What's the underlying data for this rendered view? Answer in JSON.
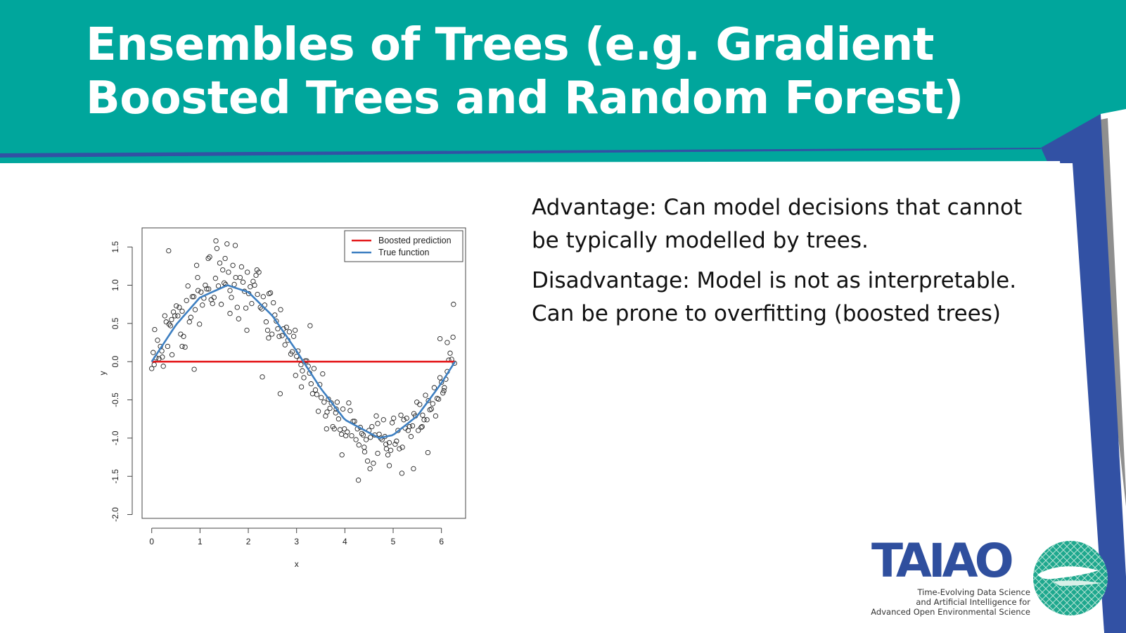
{
  "slide": {
    "title": "Ensembles of Trees (e.g. Gradient Boosted Trees and Random Forest)",
    "advantage": "Advantage: Can model decisions that cannot be typically modelled by trees.",
    "disadvantage": "Disadvantage: Model is not as interpretable. Can be prone to overfitting (boosted trees)",
    "colors": {
      "teal": "#00a69c",
      "blue": "#3251a4",
      "gray": "#8f8f8f"
    }
  },
  "logo": {
    "word": "TAIAO",
    "tagline": [
      "Time-Evolving Data Science",
      "and Artificial Intelligence for",
      "Advanced Open Environmental Science"
    ]
  },
  "chart_data": {
    "type": "scatter",
    "xlabel": "x",
    "ylabel": "y",
    "xlim": [
      -0.2,
      6.5
    ],
    "ylim": [
      -2.05,
      1.75
    ],
    "xticks": [
      "0",
      "1",
      "2",
      "3",
      "4",
      "5",
      "6"
    ],
    "yticks": [
      "-2.0",
      "-1.5",
      "-1.0",
      "-0.5",
      "0.0",
      "0.5",
      "1.0",
      "1.5"
    ],
    "legend_position": "top-right",
    "series": [
      {
        "name": "Boosted prediction",
        "type": "line",
        "color": "#e41a1c",
        "x": [
          0,
          6.28
        ],
        "y": [
          0,
          0
        ]
      },
      {
        "name": "True function",
        "type": "line",
        "color": "#3d7fc1",
        "x": [
          0,
          0.5,
          1.0,
          1.57,
          2.0,
          2.5,
          3.0,
          3.14,
          3.5,
          4.0,
          4.71,
          5.0,
          5.5,
          6.0,
          6.28
        ],
        "y": [
          0,
          0.48,
          0.84,
          1.0,
          0.91,
          0.6,
          0.14,
          0,
          -0.35,
          -0.76,
          -1.0,
          -0.96,
          -0.71,
          -0.28,
          0
        ]
      },
      {
        "type": "scatter",
        "color": "#222222",
        "x": [
          0.0,
          0.03,
          0.06,
          0.09,
          0.12,
          0.15,
          0.18,
          0.21,
          0.24,
          0.27,
          0.3,
          0.33,
          0.36,
          0.39,
          0.42,
          0.45,
          0.48,
          0.51,
          0.54,
          0.57,
          0.6,
          0.63,
          0.66,
          0.69,
          0.72,
          0.75,
          0.78,
          0.81,
          0.84,
          0.87,
          0.9,
          0.93,
          0.96,
          0.99,
          1.02,
          1.05,
          1.08,
          1.11,
          1.14,
          1.17,
          1.2,
          1.23,
          1.26,
          1.29,
          1.32,
          1.35,
          1.38,
          1.41,
          1.44,
          1.47,
          1.5,
          1.53,
          1.56,
          1.59,
          1.62,
          1.65,
          1.68,
          1.71,
          1.74,
          1.77,
          1.8,
          1.83,
          1.86,
          1.89,
          1.92,
          1.95,
          1.98,
          2.01,
          2.04,
          2.07,
          2.1,
          2.13,
          2.16,
          2.19,
          2.22,
          2.25,
          2.28,
          2.31,
          2.34,
          2.37,
          2.4,
          2.43,
          2.46,
          2.49,
          2.52,
          2.55,
          2.58,
          2.61,
          2.64,
          2.67,
          2.7,
          2.73,
          2.76,
          2.79,
          2.82,
          2.85,
          2.88,
          2.91,
          2.94,
          2.97,
          3.0,
          3.03,
          3.06,
          3.09,
          3.12,
          3.15,
          3.18,
          3.21,
          3.24,
          3.27,
          3.3,
          3.33,
          3.36,
          3.39,
          3.42,
          3.45,
          3.48,
          3.51,
          3.54,
          3.57,
          3.6,
          3.63,
          3.66,
          3.69,
          3.72,
          3.75,
          3.78,
          3.81,
          3.84,
          3.87,
          3.9,
          3.93,
          3.96,
          3.99,
          4.02,
          4.05,
          4.08,
          4.11,
          4.14,
          4.17,
          4.2,
          4.23,
          4.26,
          4.29,
          4.32,
          4.35,
          4.38,
          4.41,
          4.44,
          4.47,
          4.5,
          4.53,
          4.56,
          4.59,
          4.62,
          4.65,
          4.68,
          4.71,
          4.74,
          4.77,
          4.8,
          4.83,
          4.86,
          4.89,
          4.92,
          4.95,
          4.98,
          5.01,
          5.04,
          5.07,
          5.1,
          5.13,
          5.16,
          5.19,
          5.22,
          5.25,
          5.28,
          5.31,
          5.34,
          5.37,
          5.4,
          5.43,
          5.46,
          5.49,
          5.52,
          5.55,
          5.58,
          5.61,
          5.64,
          5.67,
          5.7,
          5.73,
          5.76,
          5.79,
          5.82,
          5.85,
          5.88,
          5.91,
          5.94,
          5.97,
          6.0,
          6.03,
          6.06,
          6.09,
          6.12,
          6.15,
          6.18,
          6.21,
          6.24,
          6.27,
          0.05,
          0.22,
          0.41,
          0.63,
          0.88,
          1.18,
          1.33,
          1.52,
          1.73,
          1.97,
          2.18,
          2.42,
          2.66,
          2.98,
          3.28,
          3.62,
          3.94,
          4.28,
          4.52,
          4.68,
          4.92,
          5.18,
          5.42,
          5.72,
          5.97,
          6.12,
          6.25,
          0.35,
          0.95,
          1.62,
          2.29,
          3.1,
          3.82,
          4.4,
          4.85,
          5.6,
          6.05
        ],
        "y": [
          -0.09,
          0.12,
          0.42,
          0.05,
          0.28,
          0.04,
          0.2,
          0.14,
          -0.06,
          0.6,
          0.52,
          0.2,
          0.49,
          0.47,
          0.09,
          0.65,
          0.6,
          0.73,
          0.6,
          0.71,
          0.36,
          0.66,
          0.33,
          0.19,
          0.8,
          0.99,
          0.52,
          0.58,
          0.85,
          0.85,
          0.68,
          1.26,
          0.93,
          0.49,
          0.91,
          0.74,
          0.83,
          1.0,
          0.95,
          1.35,
          1.37,
          0.81,
          0.76,
          0.84,
          1.09,
          1.48,
          0.99,
          1.29,
          0.75,
          1.2,
          1.03,
          1.01,
          1.54,
          1.17,
          0.93,
          0.84,
          1.26,
          1.01,
          1.1,
          0.71,
          0.56,
          1.1,
          1.24,
          1.04,
          0.92,
          0.7,
          1.17,
          0.89,
          0.98,
          0.76,
          1.05,
          1.0,
          1.13,
          0.88,
          1.17,
          0.71,
          0.69,
          0.85,
          0.74,
          0.52,
          0.41,
          0.89,
          0.9,
          0.36,
          0.77,
          0.61,
          0.53,
          0.43,
          0.33,
          0.68,
          0.34,
          0.43,
          0.22,
          0.45,
          0.28,
          0.39,
          0.1,
          0.13,
          0.33,
          0.41,
          0.07,
          0.14,
          0.02,
          -0.04,
          -0.12,
          -0.21,
          0.01,
          0.01,
          -0.06,
          -0.15,
          -0.29,
          -0.42,
          -0.09,
          -0.37,
          -0.43,
          -0.65,
          -0.3,
          -0.47,
          -0.16,
          -0.53,
          -0.71,
          -0.66,
          -0.49,
          -0.61,
          -0.54,
          -0.85,
          -0.88,
          -0.67,
          -0.53,
          -0.75,
          -0.89,
          -0.95,
          -0.62,
          -0.88,
          -0.97,
          -0.92,
          -0.54,
          -0.64,
          -0.97,
          -0.78,
          -0.78,
          -1.02,
          -0.88,
          -1.09,
          -0.86,
          -0.94,
          -0.96,
          -1.18,
          -1.02,
          -1.3,
          -0.9,
          -0.99,
          -0.85,
          -1.33,
          -0.96,
          -0.71,
          -0.81,
          -0.95,
          -1.0,
          -1.02,
          -0.76,
          -0.98,
          -1.14,
          -1.22,
          -1.06,
          -1.16,
          -0.8,
          -0.74,
          -1.08,
          -1.04,
          -0.9,
          -1.14,
          -0.7,
          -1.12,
          -0.76,
          -0.87,
          -0.74,
          -0.9,
          -0.85,
          -0.98,
          -0.84,
          -0.68,
          -0.71,
          -0.53,
          -0.9,
          -0.56,
          -0.86,
          -0.7,
          -0.76,
          -0.44,
          -0.76,
          -0.51,
          -0.63,
          -0.62,
          -0.55,
          -0.34,
          -0.71,
          -0.48,
          -0.49,
          -0.21,
          -0.27,
          -0.41,
          -0.34,
          -0.23,
          -0.13,
          0.02,
          0.11,
          0.03,
          0.32,
          -0.02,
          -0.04,
          0.06,
          0.55,
          0.2,
          -0.1,
          0.95,
          1.58,
          1.35,
          1.52,
          0.41,
          1.2,
          0.31,
          -0.42,
          -0.18,
          0.47,
          -0.88,
          -1.22,
          -1.55,
          -1.4,
          -1.2,
          -1.36,
          -1.46,
          -1.4,
          -1.19,
          0.3,
          0.25,
          0.75,
          1.45,
          1.1,
          0.63,
          -0.2,
          -0.33,
          -0.62,
          -1.12,
          -1.08,
          -0.85,
          -0.38
        ]
      }
    ]
  }
}
